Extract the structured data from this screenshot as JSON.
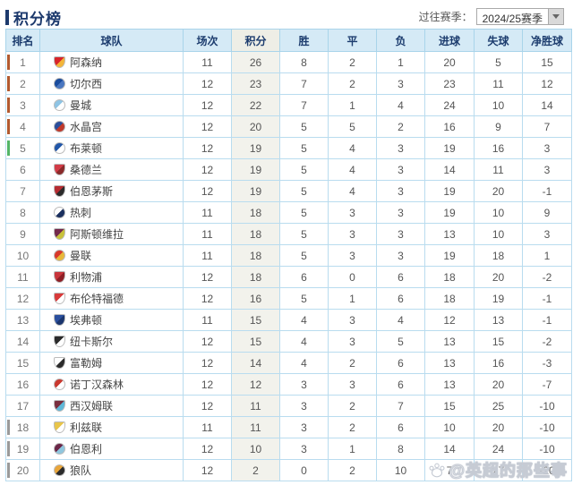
{
  "page": {
    "title": "积分榜",
    "season_label": "过往赛季：",
    "season_value": "2024/25赛季"
  },
  "table": {
    "columns": [
      "排名",
      "球队",
      "场次",
      "积分",
      "胜",
      "平",
      "负",
      "进球",
      "失球",
      "净胜球"
    ],
    "teams": [
      {
        "rank": 1,
        "name": "阿森纳",
        "zone": "cl",
        "logo_shape": "shield",
        "logo_colors": [
          "#d8252a",
          "#f3b53a"
        ],
        "played": 11,
        "points": 26,
        "win": 8,
        "draw": 2,
        "loss": 1,
        "gf": 20,
        "ga": 5,
        "gd": 15
      },
      {
        "rank": 2,
        "name": "切尔西",
        "zone": "cl",
        "logo_shape": "circle",
        "logo_colors": [
          "#1a4c9d",
          "#4a77c0"
        ],
        "played": 12,
        "points": 23,
        "win": 7,
        "draw": 2,
        "loss": 3,
        "gf": 23,
        "ga": 11,
        "gd": 12
      },
      {
        "rank": 3,
        "name": "曼城",
        "zone": "cl",
        "logo_shape": "circle",
        "logo_colors": [
          "#8fc4e4",
          "#ffffff"
        ],
        "played": 12,
        "points": 22,
        "win": 7,
        "draw": 1,
        "loss": 4,
        "gf": 24,
        "ga": 10,
        "gd": 14
      },
      {
        "rank": 4,
        "name": "水晶宫",
        "zone": "cl",
        "logo_shape": "circle",
        "logo_colors": [
          "#2a4e9b",
          "#c0392b"
        ],
        "played": 12,
        "points": 20,
        "win": 5,
        "draw": 5,
        "loss": 2,
        "gf": 16,
        "ga": 9,
        "gd": 7
      },
      {
        "rank": 5,
        "name": "布莱顿",
        "zone": "el",
        "logo_shape": "circle",
        "logo_colors": [
          "#2257a8",
          "#ffffff"
        ],
        "played": 12,
        "points": 19,
        "win": 5,
        "draw": 4,
        "loss": 3,
        "gf": 19,
        "ga": 16,
        "gd": 3
      },
      {
        "rank": 6,
        "name": "桑德兰",
        "zone": "",
        "logo_shape": "shield",
        "logo_colors": [
          "#d23b47",
          "#8a2a2a"
        ],
        "played": 12,
        "points": 19,
        "win": 5,
        "draw": 4,
        "loss": 3,
        "gf": 14,
        "ga": 11,
        "gd": 3
      },
      {
        "rank": 7,
        "name": "伯恩茅斯",
        "zone": "",
        "logo_shape": "shield",
        "logo_colors": [
          "#b52b31",
          "#2b2b2b"
        ],
        "played": 12,
        "points": 19,
        "win": 5,
        "draw": 4,
        "loss": 3,
        "gf": 19,
        "ga": 20,
        "gd": -1
      },
      {
        "rank": 8,
        "name": "热刺",
        "zone": "",
        "logo_shape": "circle",
        "logo_colors": [
          "#ffffff",
          "#1a2f5e"
        ],
        "played": 11,
        "points": 18,
        "win": 5,
        "draw": 3,
        "loss": 3,
        "gf": 19,
        "ga": 10,
        "gd": 9
      },
      {
        "rank": 9,
        "name": "阿斯顿维拉",
        "zone": "",
        "logo_shape": "shield",
        "logo_colors": [
          "#73294b",
          "#c9c23a"
        ],
        "played": 11,
        "points": 18,
        "win": 5,
        "draw": 3,
        "loss": 3,
        "gf": 13,
        "ga": 10,
        "gd": 3
      },
      {
        "rank": 10,
        "name": "曼联",
        "zone": "",
        "logo_shape": "circle",
        "logo_colors": [
          "#d8392b",
          "#e8b83a"
        ],
        "played": 11,
        "points": 18,
        "win": 5,
        "draw": 3,
        "loss": 3,
        "gf": 19,
        "ga": 18,
        "gd": 1
      },
      {
        "rank": 11,
        "name": "利物浦",
        "zone": "",
        "logo_shape": "shield",
        "logo_colors": [
          "#c8353b",
          "#8e1f26"
        ],
        "played": 12,
        "points": 18,
        "win": 6,
        "draw": 0,
        "loss": 6,
        "gf": 18,
        "ga": 20,
        "gd": -2
      },
      {
        "rank": 12,
        "name": "布伦特福德",
        "zone": "",
        "logo_shape": "shield",
        "logo_colors": [
          "#d83a3a",
          "#ffffff"
        ],
        "played": 12,
        "points": 16,
        "win": 5,
        "draw": 1,
        "loss": 6,
        "gf": 18,
        "ga": 19,
        "gd": -1
      },
      {
        "rank": 13,
        "name": "埃弗顿",
        "zone": "",
        "logo_shape": "shield",
        "logo_colors": [
          "#2a4f9e",
          "#1a356e"
        ],
        "played": 11,
        "points": 15,
        "win": 4,
        "draw": 3,
        "loss": 4,
        "gf": 12,
        "ga": 13,
        "gd": -1
      },
      {
        "rank": 14,
        "name": "纽卡斯尔",
        "zone": "",
        "logo_shape": "shield",
        "logo_colors": [
          "#2b2b2b",
          "#ffffff"
        ],
        "played": 12,
        "points": 15,
        "win": 4,
        "draw": 3,
        "loss": 5,
        "gf": 13,
        "ga": 15,
        "gd": -2
      },
      {
        "rank": 15,
        "name": "富勒姆",
        "zone": "",
        "logo_shape": "shield",
        "logo_colors": [
          "#ffffff",
          "#2b2b2b"
        ],
        "played": 12,
        "points": 14,
        "win": 4,
        "draw": 2,
        "loss": 6,
        "gf": 13,
        "ga": 16,
        "gd": -3
      },
      {
        "rank": 16,
        "name": "诺丁汉森林",
        "zone": "",
        "logo_shape": "circle",
        "logo_colors": [
          "#c9392f",
          "#ffffff"
        ],
        "played": 12,
        "points": 12,
        "win": 3,
        "draw": 3,
        "loss": 6,
        "gf": 13,
        "ga": 20,
        "gd": -7
      },
      {
        "rank": 17,
        "name": "西汉姆联",
        "zone": "",
        "logo_shape": "shield",
        "logo_colors": [
          "#7a2f3f",
          "#5fb8d8"
        ],
        "played": 12,
        "points": 11,
        "win": 3,
        "draw": 2,
        "loss": 7,
        "gf": 15,
        "ga": 25,
        "gd": -10
      },
      {
        "rank": 18,
        "name": "利兹联",
        "zone": "rel",
        "logo_shape": "shield",
        "logo_colors": [
          "#e8c54a",
          "#ffffff"
        ],
        "played": 11,
        "points": 11,
        "win": 3,
        "draw": 2,
        "loss": 6,
        "gf": 10,
        "ga": 20,
        "gd": -10
      },
      {
        "rank": 19,
        "name": "伯恩利",
        "zone": "rel",
        "logo_shape": "circle",
        "logo_colors": [
          "#6b2647",
          "#8fc6de"
        ],
        "played": 12,
        "points": 10,
        "win": 3,
        "draw": 1,
        "loss": 8,
        "gf": 14,
        "ga": 24,
        "gd": -10
      },
      {
        "rank": 20,
        "name": "狼队",
        "zone": "rel",
        "logo_shape": "circle",
        "logo_colors": [
          "#e9a53a",
          "#2b2b2b"
        ],
        "played": 12,
        "points": 2,
        "win": 0,
        "draw": 2,
        "loss": 10,
        "gf": 7,
        "ga": 27,
        "gd": -20
      }
    ]
  },
  "zone_colors": {
    "cl": "#b25a2f",
    "el": "#53b567",
    "rel": "#9a9a9a"
  },
  "watermark": {
    "text": "@英超的那些事"
  }
}
